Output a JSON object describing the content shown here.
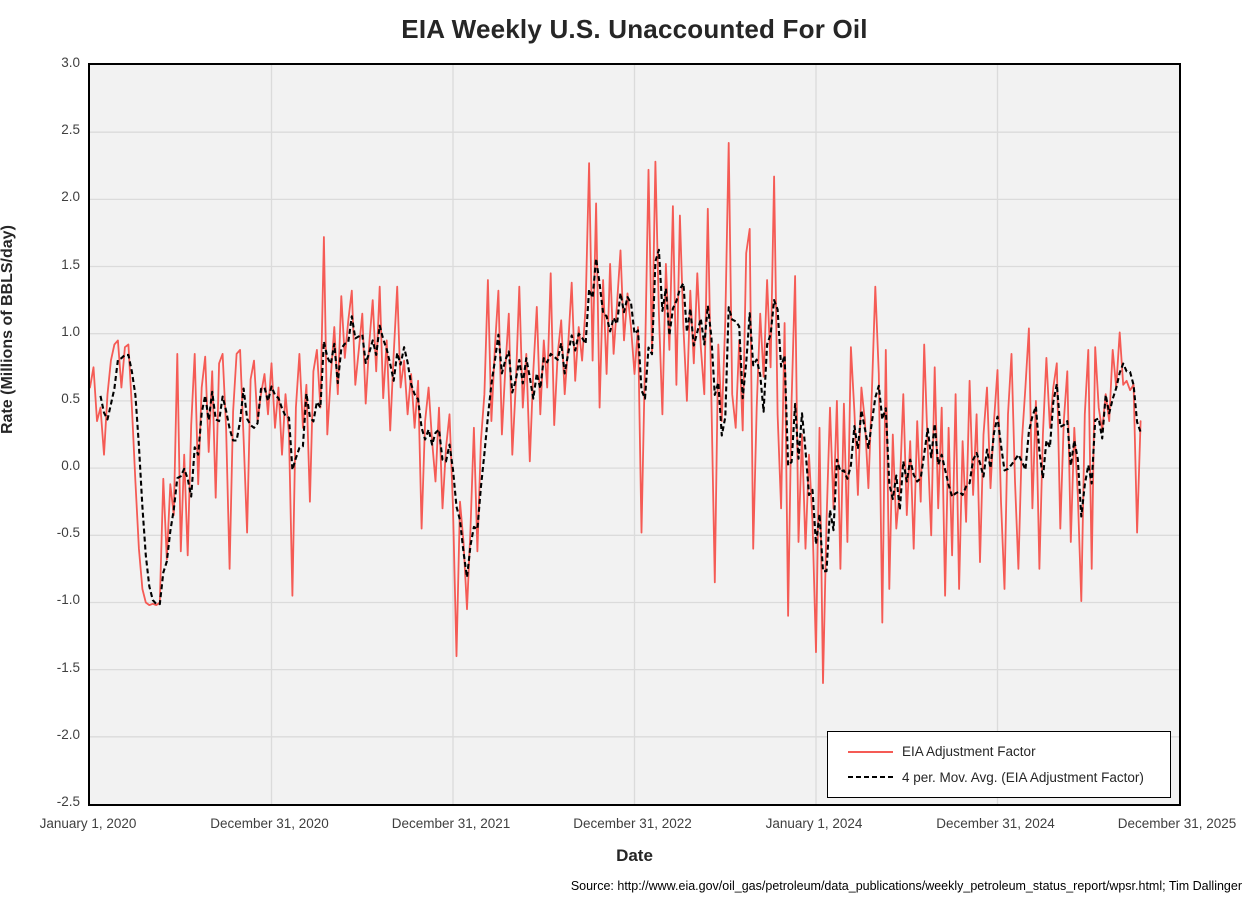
{
  "page": {
    "source_note": "Source: http://www.eia.gov/oil_gas/petroleum/data_publications/weekly_petroleum_status_report/wpsr.html; Tim Dallinger"
  },
  "legend": {
    "items": [
      {
        "label": "EIA Adjustment Factor",
        "style": "solid",
        "color": "#f55b55"
      },
      {
        "label": "4 per. Mov. Avg. (EIA Adjustment Factor)",
        "style": "dashed",
        "color": "#000000"
      }
    ]
  },
  "chart_data": {
    "type": "line",
    "title": "EIA Weekly U.S. Unaccounted For Oil",
    "xlabel": "Date",
    "ylabel": "Rate (Millions of BBLS/day)",
    "ylim": [
      -2.5,
      3.0
    ],
    "y_tick_step": 0.5,
    "y_tick_labels": [
      "3.0",
      "2.5",
      "2.0",
      "1.5",
      "1.0",
      "0.5",
      "0.0",
      "-0.5",
      "-1.0",
      "-1.5",
      "-2.0",
      "-2.5"
    ],
    "x_tick_labels": [
      "January 1, 2020",
      "December 31, 2020",
      "December 31, 2021",
      "December 31, 2022",
      "January 1, 2024",
      "December 31, 2024",
      "December 31, 2025"
    ],
    "x_axis_span_years": 6,
    "weeks_per_year": 52,
    "grid": true,
    "plot_bg_color": "#f2f2f2",
    "gridline_color": "#dbdbdb",
    "border_color": "#000000",
    "legend_position": "inside-bottom-right",
    "series": [
      {
        "name": "EIA Adjustment Factor",
        "color": "#f55b55",
        "style": "solid",
        "frequency": "weekly",
        "start_label": "January 1, 2020",
        "values": [
          0.6,
          0.75,
          0.35,
          0.45,
          0.1,
          0.55,
          0.8,
          0.92,
          0.95,
          0.6,
          0.9,
          0.92,
          0.45,
          -0.1,
          -0.6,
          -0.9,
          -1.0,
          -1.02,
          -1.01,
          -1.02,
          -1.0,
          -0.08,
          -0.68,
          -0.12,
          -0.35,
          0.85,
          -0.62,
          0.1,
          -0.65,
          0.32,
          0.85,
          -0.12,
          0.6,
          0.83,
          0.12,
          0.72,
          -0.22,
          0.78,
          0.85,
          0.3,
          -0.75,
          0.42,
          0.85,
          0.88,
          0.22,
          -0.48,
          0.66,
          0.8,
          0.35,
          0.55,
          0.7,
          0.4,
          0.78,
          0.3,
          0.6,
          0.1,
          0.55,
          0.25,
          -0.95,
          0.45,
          0.85,
          0.3,
          0.62,
          -0.25,
          0.72,
          0.88,
          0.45,
          1.72,
          0.25,
          0.68,
          1.05,
          0.55,
          1.28,
          0.82,
          1.1,
          1.32,
          0.62,
          0.88,
          1.15,
          0.48,
          0.92,
          1.25,
          0.72,
          1.35,
          0.52,
          0.95,
          0.28,
          0.85,
          1.35,
          0.6,
          0.8,
          0.4,
          0.7,
          0.3,
          0.65,
          -0.45,
          0.35,
          0.6,
          0.2,
          -0.1,
          0.45,
          -0.3,
          0.15,
          0.4,
          -0.3,
          -1.4,
          -0.25,
          -0.55,
          -1.05,
          -0.45,
          0.3,
          -0.62,
          0.2,
          0.55,
          1.4,
          0.35,
          0.9,
          1.32,
          0.25,
          0.75,
          1.15,
          0.1,
          0.62,
          1.35,
          0.45,
          0.85,
          0.05,
          0.72,
          1.2,
          0.4,
          0.95,
          0.6,
          1.45,
          0.32,
          0.85,
          1.1,
          0.55,
          0.92,
          1.38,
          0.65,
          1.05,
          0.8,
          1.2,
          2.27,
          0.8,
          1.97,
          0.45,
          1.4,
          0.7,
          1.52,
          0.85,
          1.22,
          1.62,
          0.95,
          1.3,
          1.05,
          0.7,
          1.05,
          -0.48,
          0.8,
          2.22,
          0.85,
          2.28,
          1.15,
          0.4,
          1.52,
          0.88,
          1.95,
          0.62,
          1.88,
          1.05,
          0.5,
          1.32,
          0.78,
          1.45,
          0.9,
          0.55,
          1.93,
          0.55,
          -0.85,
          0.92,
          0.35,
          1.1,
          2.42,
          0.55,
          0.3,
          0.95,
          0.28,
          1.6,
          1.78,
          -0.6,
          0.45,
          1.15,
          0.68,
          1.4,
          0.75,
          2.17,
          0.4,
          -0.3,
          1.08,
          -1.1,
          0.5,
          1.43,
          -0.55,
          0.25,
          -0.6,
          0.1,
          -0.4,
          -1.37,
          0.3,
          -1.6,
          -0.4,
          0.45,
          -0.3,
          0.5,
          -0.75,
          0.48,
          -0.55,
          0.9,
          0.42,
          -0.2,
          0.6,
          0.35,
          -0.15,
          0.55,
          1.35,
          0.7,
          -1.15,
          0.88,
          -0.9,
          0.25,
          -0.45,
          -0.15,
          0.55,
          -0.35,
          0.2,
          -0.6,
          0.35,
          -0.25,
          0.92,
          0.15,
          -0.5,
          0.75,
          -0.3,
          0.45,
          -0.95,
          0.3,
          -0.65,
          0.55,
          -0.9,
          0.2,
          -0.4,
          0.65,
          -0.2,
          0.4,
          -0.7,
          0.25,
          0.6,
          -0.15,
          0.35,
          0.73,
          -0.25,
          -0.9,
          0.4,
          0.85,
          -0.1,
          -0.75,
          0.2,
          0.6,
          1.04,
          -0.3,
          0.5,
          -0.75,
          0.25,
          0.82,
          0.3,
          0.6,
          0.78,
          -0.45,
          0.35,
          0.72,
          -0.55,
          0.3,
          -0.2,
          -0.99,
          0.4,
          0.88,
          -0.75,
          0.9,
          0.45,
          0.28,
          0.55,
          0.35,
          0.88,
          0.6,
          1.01,
          0.62,
          0.65,
          0.58,
          0.62,
          -0.48,
          0.35
        ]
      },
      {
        "name": "4 per. Mov. Avg. (EIA Adjustment Factor)",
        "color": "#000000",
        "style": "dashed",
        "derived_from": "EIA Adjustment Factor",
        "derivation": "trailing moving average",
        "window": 4
      }
    ]
  }
}
